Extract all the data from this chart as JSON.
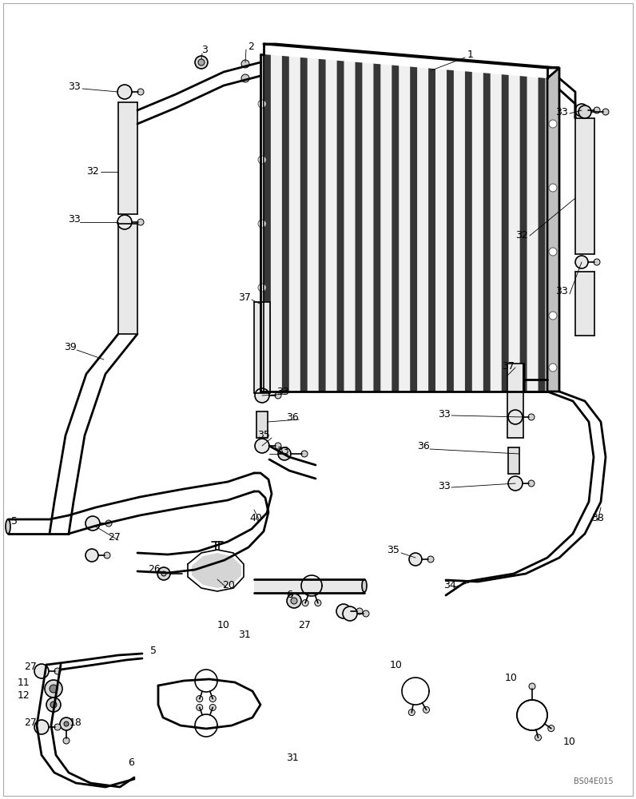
{
  "bg_color": "#ffffff",
  "line_color": "#000000",
  "label_fontsize": 9,
  "watermark": "BS04E015"
}
